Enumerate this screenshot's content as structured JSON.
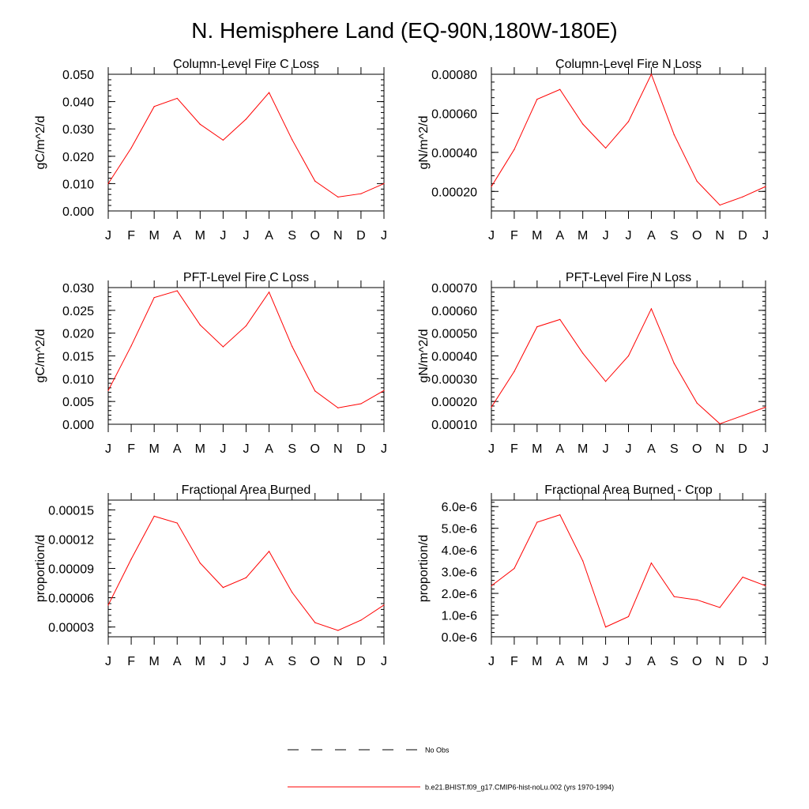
{
  "title": "N. Hemisphere Land (EQ-90N,180W-180E)",
  "months": [
    "J",
    "F",
    "M",
    "A",
    "M",
    "J",
    "J",
    "A",
    "S",
    "O",
    "N",
    "D",
    "J"
  ],
  "colors": {
    "model": "#ff0000",
    "obs": "#000000",
    "axis": "#000000"
  },
  "legend": [
    {
      "style": "dashed",
      "label": "No Obs"
    },
    {
      "style": "solid",
      "label": "b.e21.BHIST.f09_g17.CMIP6-hist-noLu.002 (yrs 1970-1994)"
    }
  ],
  "chart_data": [
    {
      "type": "line",
      "title": "Column-Level Fire C Loss",
      "ylabel": "gC/m^2/d",
      "ylim": [
        0,
        0.05
      ],
      "yticks": [
        0,
        0.01,
        0.02,
        0.03,
        0.04,
        0.05
      ],
      "ytick_labels": [
        "0.000",
        "0.010",
        "0.020",
        "0.030",
        "0.040",
        "0.050"
      ],
      "categories": [
        "J",
        "F",
        "M",
        "A",
        "M",
        "J",
        "J",
        "A",
        "S",
        "O",
        "N",
        "D",
        "J"
      ],
      "series": [
        {
          "values": [
            0.01,
            0.023,
            0.0382,
            0.0412,
            0.0317,
            0.0259,
            0.0336,
            0.0433,
            0.0261,
            0.0109,
            0.0051,
            0.0063,
            0.01
          ]
        }
      ]
    },
    {
      "type": "line",
      "title": "Column-Level Fire N Loss",
      "ylabel": "gN/m^2/d",
      "ylim": [
        0.0001,
        0.0008
      ],
      "yticks": [
        0.0002,
        0.0004,
        0.0006,
        0.0008
      ],
      "ytick_labels": [
        "0.00020",
        "0.00040",
        "0.00060",
        "0.00080"
      ],
      "categories": [
        "J",
        "F",
        "M",
        "A",
        "M",
        "J",
        "J",
        "A",
        "S",
        "O",
        "N",
        "D",
        "J"
      ],
      "series": [
        {
          "values": [
            0.000225,
            0.000415,
            0.000672,
            0.000722,
            0.000545,
            0.000422,
            0.000558,
            0.0008,
            0.00049,
            0.000252,
            0.00013,
            0.000172,
            0.000225
          ]
        }
      ]
    },
    {
      "type": "line",
      "title": "PFT-Level Fire C Loss",
      "ylabel": "gC/m^2/d",
      "ylim": [
        0,
        0.03
      ],
      "yticks": [
        0,
        0.005,
        0.01,
        0.015,
        0.02,
        0.025,
        0.03
      ],
      "ytick_labels": [
        "0.000",
        "0.005",
        "0.010",
        "0.015",
        "0.020",
        "0.025",
        "0.030"
      ],
      "categories": [
        "J",
        "F",
        "M",
        "A",
        "M",
        "J",
        "J",
        "A",
        "S",
        "O",
        "N",
        "D",
        "J"
      ],
      "series": [
        {
          "values": [
            0.0074,
            0.0172,
            0.0278,
            0.0293,
            0.0218,
            0.017,
            0.0216,
            0.029,
            0.0171,
            0.0073,
            0.0036,
            0.0045,
            0.0074
          ]
        }
      ]
    },
    {
      "type": "line",
      "title": "PFT-Level Fire N Loss",
      "ylabel": "gN/m^2/d",
      "ylim": [
        0.0001,
        0.0007
      ],
      "yticks": [
        0.0001,
        0.0002,
        0.0003,
        0.0004,
        0.0005,
        0.0006,
        0.0007
      ],
      "ytick_labels": [
        "0.00010",
        "0.00020",
        "0.00030",
        "0.00040",
        "0.00050",
        "0.00060",
        "0.00070"
      ],
      "categories": [
        "J",
        "F",
        "M",
        "A",
        "M",
        "J",
        "J",
        "A",
        "S",
        "O",
        "N",
        "D",
        "J"
      ],
      "series": [
        {
          "values": [
            0.000175,
            0.000332,
            0.000528,
            0.00056,
            0.000412,
            0.000288,
            0.0004,
            0.000607,
            0.000367,
            0.000193,
            0.000102,
            0.000138,
            0.000175
          ]
        }
      ]
    },
    {
      "type": "line",
      "title": "Fractional Area Burned",
      "ylabel": "proportion/d",
      "ylim": [
        2e-05,
        0.00016
      ],
      "yticks": [
        3e-05,
        6e-05,
        9e-05,
        0.00012,
        0.00015
      ],
      "ytick_labels": [
        "0.00003",
        "0.00006",
        "0.00009",
        "0.00012",
        "0.00015"
      ],
      "categories": [
        "J",
        "F",
        "M",
        "A",
        "M",
        "J",
        "J",
        "A",
        "S",
        "O",
        "N",
        "D",
        "J"
      ],
      "series": [
        {
          "values": [
            5.25e-05,
            9.95e-05,
            0.0001435,
            0.0001365,
            9.55e-05,
            7.05e-05,
            8.05e-05,
            0.0001075,
            6.55e-05,
            3.45e-05,
            2.65e-05,
            3.7e-05,
            5.25e-05
          ]
        }
      ]
    },
    {
      "type": "line",
      "title": "Fractional Area Burned - Crop",
      "ylabel": "proportion/d",
      "ylim": [
        0,
        6.3e-06
      ],
      "yticks": [
        0,
        1e-06,
        2e-06,
        3e-06,
        4e-06,
        5e-06,
        6e-06
      ],
      "ytick_labels": [
        "0.0e-6",
        "1.0e-6",
        "2.0e-6",
        "3.0e-6",
        "4.0e-6",
        "5.0e-6",
        "6.0e-6"
      ],
      "categories": [
        "J",
        "F",
        "M",
        "A",
        "M",
        "J",
        "J",
        "A",
        "S",
        "O",
        "N",
        "D",
        "J"
      ],
      "series": [
        {
          "values": [
            2.35e-06,
            3.15e-06,
            5.28e-06,
            5.62e-06,
            3.5e-06,
            4.5e-07,
            9.3e-07,
            3.4e-06,
            1.85e-06,
            1.7e-06,
            1.35e-06,
            2.75e-06,
            2.35e-06
          ]
        }
      ]
    }
  ]
}
